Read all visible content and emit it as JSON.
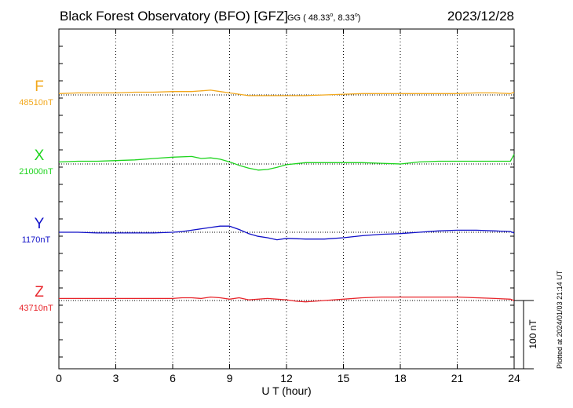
{
  "header": {
    "title": "Black Forest Observatory (BFO)  [GFZ]",
    "coords": "GG ( 48.33",
    "coords_lon": ",   8.33",
    "coords_end": ")",
    "date": "2023/12/28"
  },
  "footer": {
    "plotted": "Plotted at 2024/01/03 21:14 UT"
  },
  "chart_data": {
    "type": "line",
    "title": "Black Forest Observatory (BFO)  [GFZ]",
    "xlabel": "U T (hour)",
    "xlim": [
      0,
      24
    ],
    "x_ticks": [
      0,
      3,
      6,
      9,
      12,
      15,
      18,
      21,
      24
    ],
    "x_tick_labels": [
      "0",
      "3",
      "6",
      "9",
      "12",
      "15",
      "18",
      "21",
      "24"
    ],
    "scale_bar": {
      "value": 100,
      "label": "100 nT"
    },
    "grid": true,
    "series": [
      {
        "name": "F",
        "baseline_label": "48510nT",
        "color": "#f2a81d",
        "baseline_nT": 48510,
        "x": [
          0,
          1,
          2,
          3,
          4,
          5,
          6,
          7,
          7.5,
          8,
          8.5,
          9,
          9.5,
          10,
          10.5,
          11,
          12,
          13,
          14,
          15,
          16,
          17,
          18,
          19,
          20,
          21,
          22,
          23,
          23.8,
          24
        ],
        "values": [
          48512,
          48513,
          48513,
          48513,
          48514,
          48514,
          48515,
          48515,
          48516,
          48517,
          48515,
          48513,
          48511,
          48509,
          48509,
          48509,
          48509,
          48509,
          48510,
          48511,
          48512,
          48512,
          48512,
          48512,
          48512,
          48512,
          48513,
          48513,
          48512,
          48514
        ]
      },
      {
        "name": "X",
        "baseline_label": "21000nT",
        "color": "#1ed41e",
        "baseline_nT": 21000,
        "x": [
          0,
          1,
          2,
          3,
          4,
          5,
          6,
          7,
          7.5,
          8,
          8.5,
          9,
          9.5,
          10,
          10.5,
          11,
          11.5,
          12,
          13,
          14,
          15,
          16,
          17,
          18,
          19,
          20,
          21,
          22,
          23,
          23.8,
          24
        ],
        "values": [
          21003,
          21004,
          21004,
          21005,
          21006,
          21008,
          21010,
          21011,
          21008,
          21009,
          21007,
          21003,
          20998,
          20994,
          20991,
          20992,
          20995,
          20999,
          21002,
          21002,
          21002,
          21002,
          21001,
          21000,
          21003,
          21004,
          21004,
          21004,
          21004,
          21004,
          21014
        ]
      },
      {
        "name": "Y",
        "baseline_label": "1170nT",
        "color": "#1010c8",
        "baseline_nT": 1170,
        "x": [
          0,
          1,
          2,
          3,
          4,
          5,
          6,
          6.5,
          7,
          7.5,
          8,
          8.5,
          9,
          9.5,
          10,
          10.5,
          11,
          11.5,
          12,
          13,
          14,
          15,
          16,
          17,
          18,
          19,
          20,
          21,
          22,
          23,
          23.8,
          24
        ],
        "values": [
          1170,
          1170,
          1169,
          1169,
          1169,
          1169,
          1170,
          1171,
          1173,
          1175,
          1177,
          1179,
          1179,
          1174,
          1168,
          1164,
          1162,
          1159,
          1161,
          1160,
          1160,
          1162,
          1165,
          1167,
          1168,
          1170,
          1172,
          1173,
          1173,
          1172,
          1171,
          1169
        ]
      },
      {
        "name": "Z",
        "baseline_label": "43710nT",
        "color": "#e8262c",
        "baseline_nT": 43710,
        "x": [
          0,
          1,
          2,
          3,
          4,
          5,
          6,
          6.5,
          7,
          7.5,
          8,
          8.5,
          9,
          9.5,
          10,
          10.5,
          11,
          11.5,
          12,
          12.5,
          13,
          13.5,
          14,
          15,
          16,
          17,
          18,
          19,
          20,
          21,
          22,
          23,
          23.8,
          24
        ],
        "values": [
          43713,
          43713,
          43713,
          43713,
          43713,
          43713,
          43713,
          43714,
          43714,
          43713,
          43715,
          43714,
          43712,
          43714,
          43711,
          43712,
          43713,
          43712,
          43711,
          43709,
          43708,
          43709,
          43710,
          43712,
          43714,
          43715,
          43715,
          43715,
          43715,
          43715,
          43714,
          43713,
          43712,
          43710
        ]
      }
    ]
  }
}
